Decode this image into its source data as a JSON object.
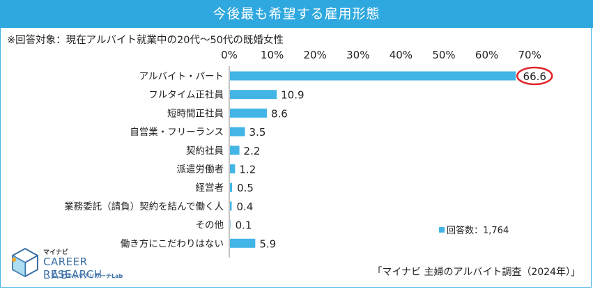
{
  "header": {
    "title": "今後最も希望する雇用形態"
  },
  "subtitle": "※回答対象：現在アルバイト就業中の20代～50代の既婚女性",
  "legend": {
    "label": "回答数：1,764"
  },
  "source": "「マイナビ 主婦のアルバイト調査（2024年）」",
  "logo": {
    "small": "マイナビ",
    "main": "CAREER RESEARCH",
    "lab": "LAB",
    "jp": "キャリアリサーチLab"
  },
  "colors": {
    "title_bg": "#2fa8df",
    "bar": "#42b4e6",
    "highlight": "#e0242b"
  },
  "chart_data": {
    "type": "bar",
    "orientation": "horizontal",
    "title": "今後最も希望する雇用形態",
    "xlim": [
      0,
      70
    ],
    "ticks": [
      0,
      10,
      20,
      30,
      40,
      50,
      60,
      70
    ],
    "tick_labels": [
      "0%",
      "10%",
      "20%",
      "30%",
      "40%",
      "50%",
      "60%",
      "70%"
    ],
    "categories": [
      "アルバイト・パート",
      "フルタイム正社員",
      "短時間正社員",
      "自営業・フリーランス",
      "契約社員",
      "派遣労働者",
      "経営者",
      "業務委託（請負）契約を結んで働く人",
      "その他",
      "働き方にこだわりはない"
    ],
    "values": [
      66.6,
      10.9,
      8.6,
      3.5,
      2.2,
      1.2,
      0.5,
      0.4,
      0.1,
      5.9
    ],
    "value_labels": [
      "66.6",
      "10.9",
      "8.6",
      "3.5",
      "2.2",
      "1.2",
      "0.5",
      "0.4",
      "0.1",
      "5.9"
    ],
    "highlighted_index": 0,
    "series_name": "回答数：1,764"
  }
}
